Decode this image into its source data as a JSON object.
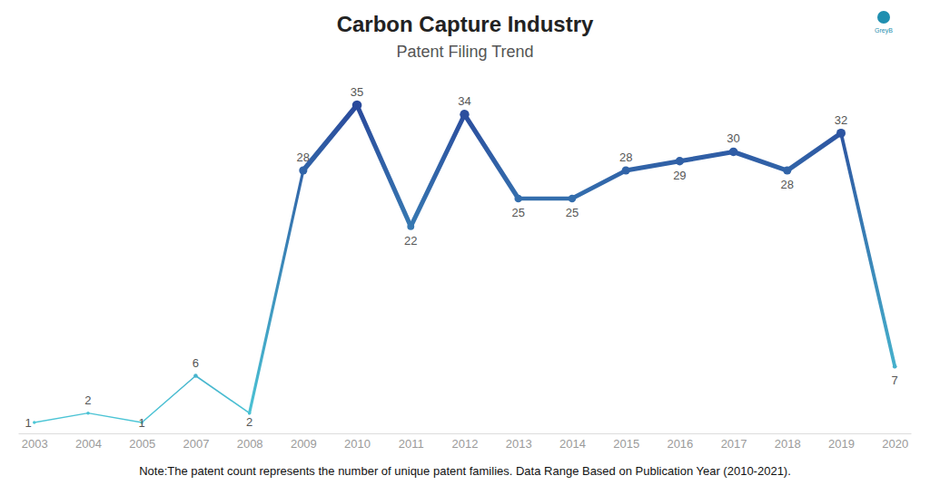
{
  "chart_data": {
    "type": "line",
    "title": "Carbon Capture Industry",
    "subtitle": "Patent Filing Trend",
    "note": "Note:The patent count represents the number of unique patent families. Data Range Based on Publication Year (2010-2021).",
    "logo": "GreyB",
    "categories": [
      "2003",
      "2004",
      "2005",
      "2007",
      "2008",
      "2009",
      "2010",
      "2011",
      "2012",
      "2013",
      "2014",
      "2015",
      "2016",
      "2017",
      "2018",
      "2019",
      "2020"
    ],
    "values": [
      1,
      2,
      1,
      6,
      2,
      28,
      35,
      22,
      34,
      25,
      25,
      28,
      29,
      30,
      28,
      32,
      7
    ],
    "color": "#2a4a9c",
    "data_labels": true,
    "tick_labels": "x"
  }
}
